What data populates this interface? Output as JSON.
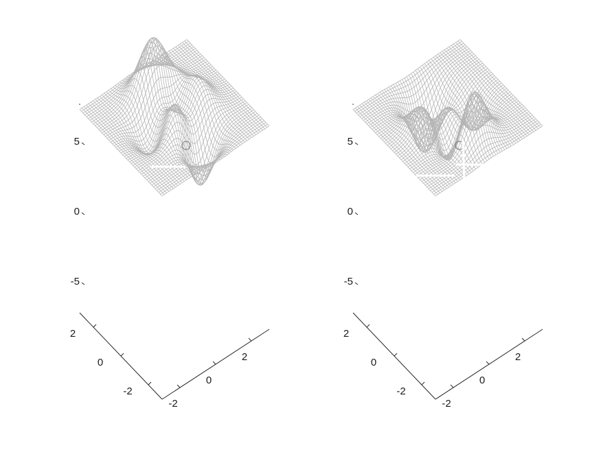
{
  "chart_data": [
    {
      "type": "surface",
      "title": "",
      "xlabel": "",
      "ylabel": "",
      "zlabel": "",
      "function": "peaks",
      "xlim": [
        -3,
        3
      ],
      "ylim": [
        -3,
        3
      ],
      "zlim": [
        -7,
        8
      ],
      "z_ticks": [
        -5,
        0,
        5
      ],
      "z_tick_labels": [
        "-5",
        "0",
        "5"
      ],
      "x_ticks": [
        -2,
        0,
        2
      ],
      "x_tick_labels": [
        "-2",
        "0",
        "2"
      ],
      "y_ticks": [
        -2,
        0,
        2
      ],
      "y_tick_labels": [
        "-2",
        "0",
        "2"
      ],
      "z_min": -6.5,
      "z_max": 8.1,
      "mesh_color": "#b4b4b4",
      "grid": false,
      "variant": "peaks"
    },
    {
      "type": "surface",
      "title": "",
      "xlabel": "",
      "ylabel": "",
      "zlabel": "",
      "function": "negated-peaks",
      "xlim": [
        -3,
        3
      ],
      "ylim": [
        -3,
        3
      ],
      "zlim": [
        -7,
        8
      ],
      "z_ticks": [
        -5,
        0,
        5
      ],
      "z_tick_labels": [
        "-5",
        "0",
        "5"
      ],
      "x_ticks": [
        -2,
        0,
        2
      ],
      "x_tick_labels": [
        "-2",
        "0",
        "2"
      ],
      "y_ticks": [
        -2,
        0,
        2
      ],
      "y_tick_labels": [
        "-2",
        "0",
        "2"
      ],
      "z_min": -8.1,
      "z_max": 6.5,
      "mesh_color": "#b4b4b4",
      "grid": false,
      "variant": "negated"
    }
  ]
}
